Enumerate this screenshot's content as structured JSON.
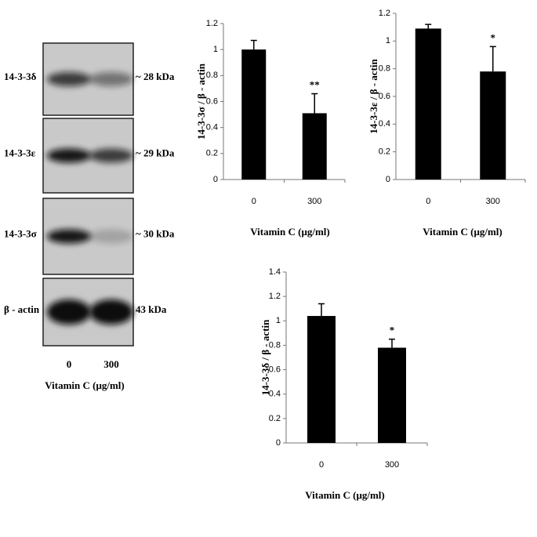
{
  "blot": {
    "bands": [
      {
        "name": "14-3-3δ",
        "size": "~ 28 kDa"
      },
      {
        "name": "14-3-3ε",
        "size": "~ 29 kDa"
      },
      {
        "name": "14-3-3σ",
        "size": "~ 30 kDa"
      },
      {
        "name": "β - actin",
        "size": "43 kDa"
      }
    ],
    "lanes": [
      "0",
      "300"
    ],
    "xlabel": "Vitamin C (μg/ml)"
  },
  "chart_data": [
    {
      "type": "bar",
      "ylabel": "14-3-3σ / β - actin",
      "xlabel": "Vitamin C (μg/ml)",
      "categories": [
        "0",
        "300"
      ],
      "values": [
        1.0,
        0.51
      ],
      "errors": [
        0.07,
        0.15
      ],
      "annotation": "**",
      "color": "#000000",
      "ylim": [
        0,
        1.2
      ],
      "yticks": [
        0,
        0.2,
        0.4,
        0.6,
        0.8,
        1,
        1.2
      ]
    },
    {
      "type": "bar",
      "ylabel": "14-3-3ε / β - actin",
      "xlabel": "Vitamin C (μg/ml)",
      "categories": [
        "0",
        "300"
      ],
      "values": [
        1.09,
        0.78
      ],
      "errors": [
        0.03,
        0.18
      ],
      "annotation": "*",
      "color": "#000000",
      "ylim": [
        0,
        1.2
      ],
      "yticks": [
        0,
        0.2,
        0.4,
        0.6,
        0.8,
        1,
        1.2
      ]
    },
    {
      "type": "bar",
      "ylabel": "14-3-3δ / β - actin",
      "xlabel": "Vitamin C (μg/ml)",
      "categories": [
        "0",
        "300"
      ],
      "values": [
        1.04,
        0.78
      ],
      "errors": [
        0.1,
        0.07
      ],
      "annotation": "*",
      "color": "#000000",
      "ylim": [
        0,
        1.4
      ],
      "yticks": [
        0,
        0.2,
        0.4,
        0.6,
        0.8,
        1,
        1.2,
        1.4
      ]
    }
  ]
}
